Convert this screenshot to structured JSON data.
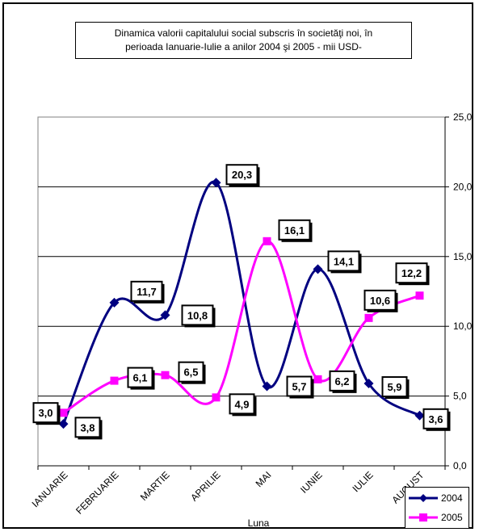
{
  "chart_data": {
    "type": "line",
    "title": [
      "Dinamica  valorii capitalului social subscris în societăţi noi,  în",
      "perioada Ianuarie-Iulie  a anilor 2004 şi 2005  - mii  USD-"
    ],
    "xlabel": "Luna",
    "ylabel": "",
    "categories": [
      "IANUARIE",
      "FEBRUARIE",
      "MARTIE",
      "APRILIE",
      "MAI",
      "IUNIE",
      "IULIE",
      "AUGUST"
    ],
    "ylim": [
      0,
      25
    ],
    "yticks": [
      "0,0",
      "5,0",
      "10,0",
      "15,0",
      "20,0",
      "25,0"
    ],
    "y_axis_side": "right",
    "grid": true,
    "legend": "bottom-right",
    "series": [
      {
        "name": "2004",
        "color": "#000080",
        "marker": "diamond",
        "values": [
          3.0,
          11.7,
          10.8,
          20.3,
          5.7,
          14.1,
          5.9,
          3.6
        ],
        "labels": [
          "3,0",
          "11,7",
          "10,8",
          "20,3",
          "5,7",
          "14,1",
          "5,9",
          "3,6"
        ]
      },
      {
        "name": "2005",
        "color": "#FF00FF",
        "marker": "square",
        "values": [
          3.8,
          6.1,
          6.5,
          4.9,
          16.1,
          6.2,
          10.6,
          12.2
        ],
        "labels": [
          "3,8",
          "6,1",
          "6,5",
          "4,9",
          "16,1",
          "6,2",
          "10,6",
          "12,2"
        ]
      }
    ]
  }
}
